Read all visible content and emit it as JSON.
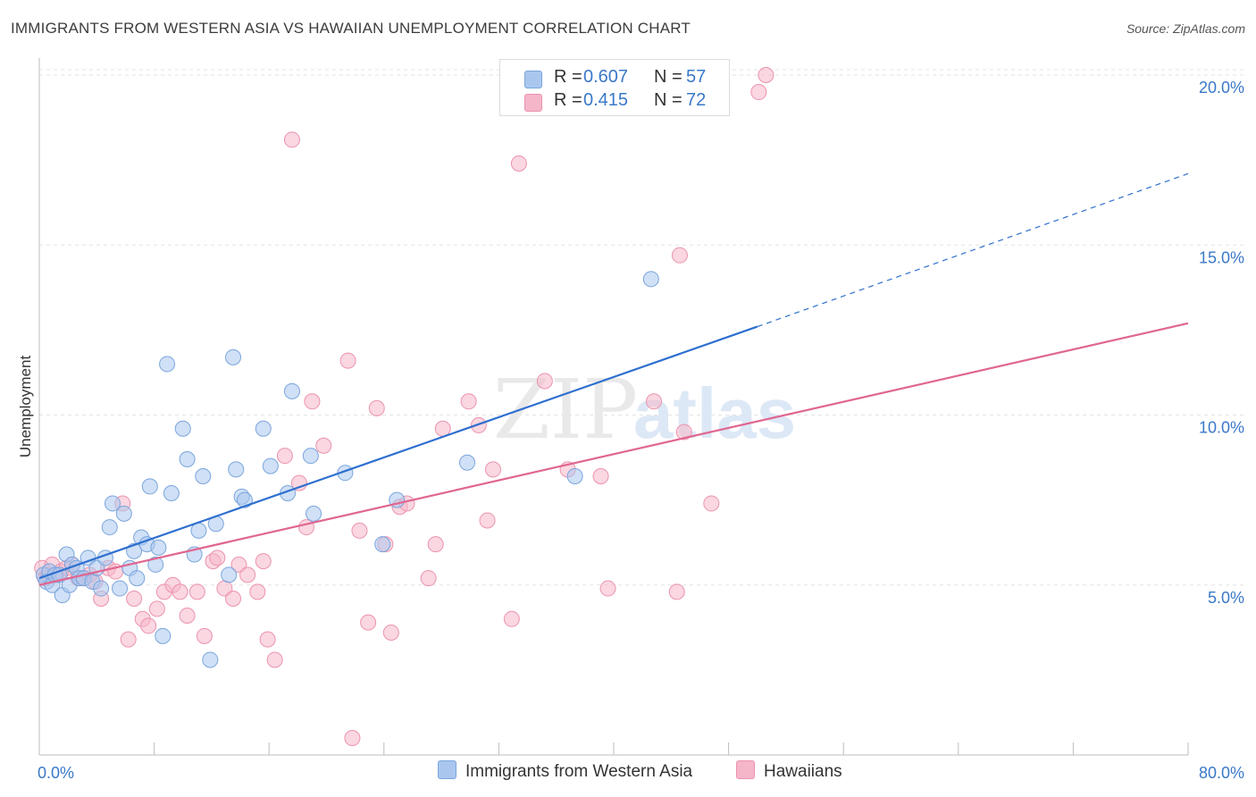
{
  "title": "IMMIGRANTS FROM WESTERN ASIA VS HAWAIIAN UNEMPLOYMENT CORRELATION CHART",
  "source": "Source: ZipAtlas.com",
  "watermark": {
    "zip": "ZIP",
    "atlas": "atlas"
  },
  "legend_top": [
    {
      "r_label": "R =",
      "r_value": "0.607",
      "n_label": "N =",
      "n_value": "57",
      "color": "#a9c7ee"
    },
    {
      "r_label": "R =",
      "r_value": "0.415",
      "n_label": "N =",
      "n_value": "72",
      "color": "#f5b6c9"
    }
  ],
  "legend_bottom": [
    {
      "label": "Immigrants from Western Asia",
      "color": "#a9c7ee"
    },
    {
      "label": "Hawaiians",
      "color": "#f5b6c9"
    }
  ],
  "colors": {
    "blue_fill": "#a9c7ee",
    "blue_stroke": "#7aa5dc",
    "blue_line": "#2e6fcf",
    "pink_fill": "#f5b6c9",
    "pink_stroke": "#ec93ae",
    "pink_line": "#e06690",
    "grid": "#e3e3e3",
    "tick_label": "#3a78c8",
    "axis": "#bdbdbd"
  },
  "chart_data": {
    "type": "scatter",
    "title": "IMMIGRANTS FROM WESTERN ASIA VS HAWAIIAN UNEMPLOYMENT CORRELATION CHART",
    "ylabel": "Unemployment",
    "xlabel": "",
    "xlim": [
      0,
      80
    ],
    "ylim": [
      0,
      20.5
    ],
    "x_tick_labels": [
      {
        "value": 0,
        "label": "0.0%"
      },
      {
        "value": 80,
        "label": "80.0%"
      }
    ],
    "y_ticks": [
      {
        "value": 5,
        "label": "5.0%"
      },
      {
        "value": 10,
        "label": "10.0%"
      },
      {
        "value": 15,
        "label": "15.0%"
      },
      {
        "value": 20,
        "label": "20.0%"
      }
    ],
    "x_minor_ticks": [
      0,
      8,
      16,
      24,
      32,
      40,
      48,
      56,
      64,
      72,
      80
    ],
    "series": [
      {
        "name": "Immigrants from Western Asia",
        "R": 0.607,
        "N": 57,
        "trend": {
          "x0": 0,
          "y0": 5.2,
          "x1": 50,
          "y1": 12.6,
          "dashed_to_x": 80,
          "dashed_to_y": 17.1
        },
        "points": [
          [
            0.3,
            5.3
          ],
          [
            0.5,
            5.1
          ],
          [
            0.7,
            5.4
          ],
          [
            0.9,
            5.0
          ],
          [
            1.1,
            5.3
          ],
          [
            1.4,
            5.3
          ],
          [
            1.6,
            4.7
          ],
          [
            1.9,
            5.9
          ],
          [
            2.1,
            5.0
          ],
          [
            2.3,
            5.6
          ],
          [
            2.6,
            5.5
          ],
          [
            2.8,
            5.2
          ],
          [
            3.1,
            5.2
          ],
          [
            3.4,
            5.8
          ],
          [
            3.7,
            5.1
          ],
          [
            4.0,
            5.5
          ],
          [
            4.3,
            4.9
          ],
          [
            4.6,
            5.8
          ],
          [
            4.9,
            6.7
          ],
          [
            5.1,
            7.4
          ],
          [
            5.6,
            4.9
          ],
          [
            5.9,
            7.1
          ],
          [
            6.3,
            5.5
          ],
          [
            6.6,
            6.0
          ],
          [
            6.8,
            5.2
          ],
          [
            7.1,
            6.4
          ],
          [
            7.5,
            6.2
          ],
          [
            7.7,
            7.9
          ],
          [
            8.1,
            5.6
          ],
          [
            8.3,
            6.1
          ],
          [
            8.6,
            3.5
          ],
          [
            8.9,
            11.5
          ],
          [
            9.2,
            7.7
          ],
          [
            10.0,
            9.6
          ],
          [
            10.3,
            8.7
          ],
          [
            10.8,
            5.9
          ],
          [
            11.1,
            6.6
          ],
          [
            11.4,
            8.2
          ],
          [
            11.9,
            2.8
          ],
          [
            12.3,
            6.8
          ],
          [
            13.2,
            5.3
          ],
          [
            13.5,
            11.7
          ],
          [
            13.7,
            8.4
          ],
          [
            14.1,
            7.6
          ],
          [
            14.3,
            7.5
          ],
          [
            15.6,
            9.6
          ],
          [
            16.1,
            8.5
          ],
          [
            17.3,
            7.7
          ],
          [
            17.6,
            10.7
          ],
          [
            18.9,
            8.8
          ],
          [
            19.1,
            7.1
          ],
          [
            21.3,
            8.3
          ],
          [
            23.9,
            6.2
          ],
          [
            24.9,
            7.5
          ],
          [
            29.8,
            8.6
          ],
          [
            37.3,
            8.2
          ],
          [
            42.6,
            14.0
          ]
        ]
      },
      {
        "name": "Hawaiians",
        "R": 0.415,
        "N": 72,
        "trend": {
          "x0": 0,
          "y0": 5.0,
          "x1": 80,
          "y1": 12.7
        },
        "points": [
          [
            0.2,
            5.5
          ],
          [
            0.4,
            5.2
          ],
          [
            0.6,
            5.3
          ],
          [
            0.9,
            5.6
          ],
          [
            1.2,
            5.3
          ],
          [
            1.5,
            5.4
          ],
          [
            1.9,
            5.5
          ],
          [
            2.3,
            5.6
          ],
          [
            2.7,
            5.2
          ],
          [
            3.1,
            5.2
          ],
          [
            3.5,
            5.3
          ],
          [
            3.9,
            5.1
          ],
          [
            4.3,
            4.6
          ],
          [
            4.8,
            5.5
          ],
          [
            5.3,
            5.4
          ],
          [
            5.8,
            7.4
          ],
          [
            6.2,
            3.4
          ],
          [
            6.6,
            4.6
          ],
          [
            7.2,
            4.0
          ],
          [
            7.6,
            3.8
          ],
          [
            8.2,
            4.3
          ],
          [
            8.7,
            4.8
          ],
          [
            9.3,
            5.0
          ],
          [
            9.8,
            4.8
          ],
          [
            10.3,
            4.1
          ],
          [
            11.0,
            4.8
          ],
          [
            11.5,
            3.5
          ],
          [
            12.1,
            5.7
          ],
          [
            12.4,
            5.8
          ],
          [
            12.9,
            4.9
          ],
          [
            13.5,
            4.6
          ],
          [
            13.9,
            5.6
          ],
          [
            14.5,
            5.3
          ],
          [
            15.2,
            4.8
          ],
          [
            15.6,
            5.7
          ],
          [
            15.9,
            3.4
          ],
          [
            16.4,
            2.8
          ],
          [
            17.1,
            8.8
          ],
          [
            17.6,
            18.1
          ],
          [
            18.1,
            8.0
          ],
          [
            18.6,
            6.7
          ],
          [
            19.0,
            10.4
          ],
          [
            19.8,
            9.1
          ],
          [
            21.5,
            11.6
          ],
          [
            21.8,
            0.5
          ],
          [
            22.3,
            6.6
          ],
          [
            22.9,
            3.9
          ],
          [
            23.5,
            10.2
          ],
          [
            24.1,
            6.2
          ],
          [
            24.5,
            3.6
          ],
          [
            25.1,
            7.3
          ],
          [
            25.6,
            7.4
          ],
          [
            27.1,
            5.2
          ],
          [
            27.6,
            6.2
          ],
          [
            28.1,
            9.6
          ],
          [
            29.9,
            10.4
          ],
          [
            30.6,
            9.7
          ],
          [
            31.2,
            6.9
          ],
          [
            31.6,
            8.4
          ],
          [
            32.9,
            4.0
          ],
          [
            33.4,
            17.4
          ],
          [
            35.2,
            11.0
          ],
          [
            36.8,
            8.4
          ],
          [
            39.1,
            8.2
          ],
          [
            39.6,
            4.9
          ],
          [
            42.8,
            10.4
          ],
          [
            44.4,
            4.8
          ],
          [
            44.6,
            14.7
          ],
          [
            44.9,
            9.5
          ],
          [
            46.8,
            7.4
          ],
          [
            50.1,
            19.5
          ],
          [
            50.6,
            20.0
          ]
        ]
      }
    ]
  }
}
